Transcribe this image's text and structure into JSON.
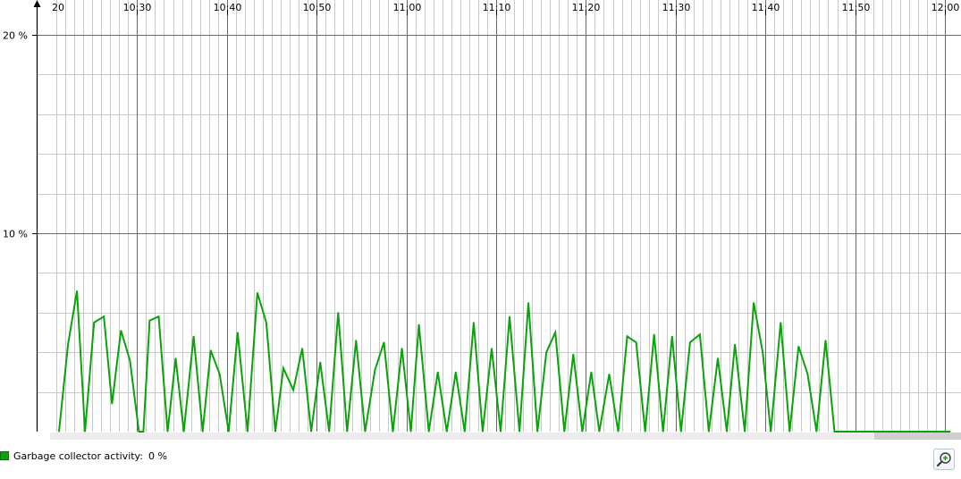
{
  "chart_data": {
    "type": "line",
    "x_tick_labels": [
      "20",
      "10:30",
      "10:40",
      "10:50",
      "11:00",
      "11:10",
      "11:20",
      "11:30",
      "11:40",
      "11:50",
      "12:00"
    ],
    "y_tick_labels": [
      "20 %",
      "10 %"
    ],
    "y_ticks": [
      20,
      10
    ],
    "ylim": [
      0,
      20
    ],
    "x_range_minutes": [
      21.0,
      120.0
    ],
    "grid": true,
    "series": [
      {
        "color": "#0aa30a",
        "x": [
          21.3,
          22.3,
          23.3,
          24.2,
          25.2,
          26.3,
          27.2,
          28.2,
          29.2,
          30.2,
          30.7,
          31.4,
          32.4,
          33.4,
          34.3,
          35.2,
          36.3,
          37.3,
          38.2,
          39.2,
          40.2,
          41.2,
          42.3,
          43.4,
          44.4,
          45.4,
          46.3,
          47.4,
          48.4,
          49.4,
          50.4,
          51.4,
          52.4,
          53.4,
          54.4,
          55.4,
          56.5,
          57.5,
          58.5,
          59.5,
          60.5,
          61.4,
          62.5,
          63.5,
          64.5,
          65.5,
          66.5,
          67.5,
          68.5,
          69.5,
          70.5,
          71.5,
          72.6,
          73.6,
          74.6,
          75.6,
          76.6,
          77.6,
          78.6,
          79.6,
          80.6,
          81.5,
          82.6,
          83.6,
          84.6,
          85.6,
          86.6,
          87.6,
          88.6,
          89.6,
          90.6,
          91.6,
          92.7,
          93.7,
          94.7,
          95.7,
          96.6,
          97.7,
          98.7,
          99.7,
          100.6,
          101.7,
          102.7,
          103.7,
          104.7,
          105.7,
          106.7,
          107.7,
          108.7,
          109.7,
          110.7,
          111.7,
          112.7,
          113.7,
          114.7,
          115.7,
          116.7,
          117.6,
          118.7,
          119.7,
          120.6
        ],
        "y": [
          0,
          4.4,
          7.1,
          0,
          5.5,
          5.8,
          1.4,
          5.1,
          3.6,
          0,
          0,
          5.6,
          5.8,
          0,
          3.7,
          0,
          4.8,
          0,
          4.1,
          2.9,
          0,
          5.0,
          0,
          7.0,
          5.5,
          0,
          3.2,
          2.1,
          4.2,
          0,
          3.5,
          0,
          6.0,
          0,
          4.6,
          0,
          3.1,
          4.5,
          0,
          4.2,
          0,
          5.4,
          0,
          3.0,
          0,
          3.0,
          0,
          5.5,
          0,
          4.2,
          0,
          5.8,
          0,
          6.5,
          0,
          4.0,
          5.0,
          0,
          3.9,
          0,
          3.0,
          0,
          2.9,
          0,
          4.8,
          4.5,
          0,
          4.9,
          0,
          4.8,
          0,
          4.5,
          4.9,
          0,
          3.7,
          0,
          4.4,
          0,
          6.5,
          4.0,
          0,
          5.5,
          0,
          4.3,
          2.9,
          0,
          4.6,
          0,
          0,
          0,
          0,
          0,
          0,
          0,
          0,
          0,
          0,
          0,
          0,
          0,
          0
        ]
      }
    ],
    "legend": {
      "label": "Garbage collector activity:",
      "value": "0 %",
      "placement": "bottom-left"
    }
  }
}
